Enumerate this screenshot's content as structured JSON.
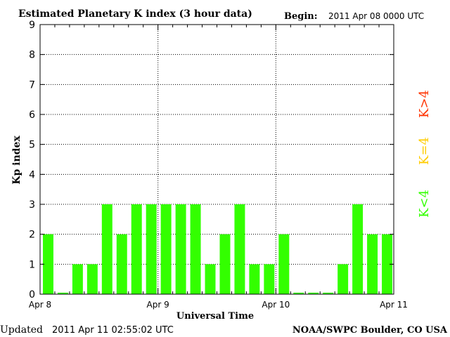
{
  "title": "Estimated Planetary K index (3 hour data)",
  "begin_label": "Begin:",
  "begin_value": "2011 Apr 08 0000 UTC",
  "updated_label": "Updated",
  "updated_value": "2011 Apr 11 02:55:02 UTC",
  "credit": "NOAA/SWPC Boulder, CO USA",
  "colors": {
    "bar": "#33ff00",
    "k_below": "#33ff00",
    "k_equal": "#ffcc00",
    "k_above": "#ff3300",
    "axis": "#000000",
    "grid": "#000000",
    "background": "#ffffff"
  },
  "chart_data": {
    "type": "bar",
    "title": "Estimated Planetary K index (3 hour data)",
    "xlabel": "Universal Time",
    "ylabel": "Kp index",
    "ylim": [
      0,
      9
    ],
    "yticks": [
      0,
      1,
      2,
      3,
      4,
      5,
      6,
      7,
      8,
      9
    ],
    "xticks": [
      "Apr 8",
      "Apr 9",
      "Apr 10",
      "Apr 11"
    ],
    "bars_per_day": 8,
    "values": [
      2,
      0.05,
      1,
      1,
      3,
      2,
      3,
      3,
      3,
      3,
      3,
      1,
      2,
      3,
      1,
      1,
      2,
      0.05,
      0.05,
      0.05,
      1,
      3,
      2,
      2
    ],
    "grid": true,
    "legend": [
      {
        "label": "K<4",
        "color": "#33ff00"
      },
      {
        "label": "K=4",
        "color": "#ffcc00"
      },
      {
        "label": "K>4",
        "color": "#ff3300"
      }
    ],
    "legend_placement": "right, vertical"
  }
}
